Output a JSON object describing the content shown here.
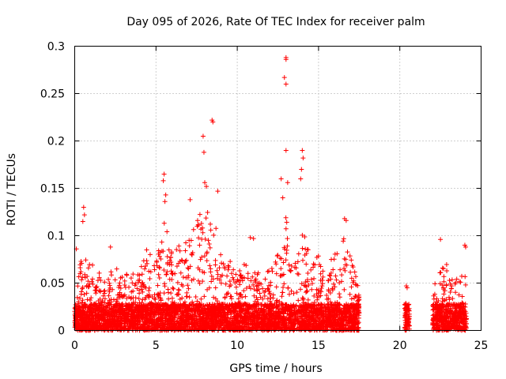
{
  "chart_data": {
    "type": "scatter",
    "title": "Day 095 of 2026, Rate Of TEC Index for receiver palm",
    "xlabel": "GPS time / hours",
    "ylabel": "ROTI / TECUs",
    "xlim": [
      0,
      25
    ],
    "ylim": [
      0,
      0.3
    ],
    "xticks": [
      0,
      5,
      10,
      15,
      20,
      25
    ],
    "yticks": [
      0,
      0.05,
      0.1,
      0.15,
      0.2,
      0.25,
      0.3
    ],
    "xtick_labels": [
      "0",
      "5",
      "10",
      "15",
      "20",
      "25"
    ],
    "ytick_labels": [
      "0",
      "0.05",
      "0.1",
      "0.15",
      "0.2",
      "0.25",
      "0.3"
    ],
    "grid": true,
    "marker": "+",
    "color": "#ff0000",
    "coverage_segments": [
      [
        0,
        17.5
      ],
      [
        20.3,
        20.6
      ],
      [
        22,
        24.1
      ]
    ],
    "outliers": [
      {
        "x": 13.0,
        "y": 0.288
      },
      {
        "x": 13.0,
        "y": 0.286
      },
      {
        "x": 12.9,
        "y": 0.267
      },
      {
        "x": 13.0,
        "y": 0.26
      },
      {
        "x": 8.5,
        "y": 0.22
      },
      {
        "x": 8.45,
        "y": 0.222
      },
      {
        "x": 7.9,
        "y": 0.205
      },
      {
        "x": 7.95,
        "y": 0.188
      },
      {
        "x": 13.0,
        "y": 0.19
      },
      {
        "x": 14.0,
        "y": 0.19
      },
      {
        "x": 14.05,
        "y": 0.182
      },
      {
        "x": 13.95,
        "y": 0.17
      },
      {
        "x": 13.9,
        "y": 0.16
      },
      {
        "x": 5.5,
        "y": 0.165
      },
      {
        "x": 5.45,
        "y": 0.158
      },
      {
        "x": 12.7,
        "y": 0.16
      },
      {
        "x": 13.1,
        "y": 0.156
      },
      {
        "x": 8.0,
        "y": 0.156
      },
      {
        "x": 8.1,
        "y": 0.152
      },
      {
        "x": 12.8,
        "y": 0.14
      },
      {
        "x": 5.6,
        "y": 0.143
      },
      {
        "x": 5.55,
        "y": 0.136
      },
      {
        "x": 0.55,
        "y": 0.13
      },
      {
        "x": 0.6,
        "y": 0.122
      },
      {
        "x": 0.5,
        "y": 0.115
      },
      {
        "x": 16.6,
        "y": 0.118
      },
      {
        "x": 16.7,
        "y": 0.116
      },
      {
        "x": 20.4,
        "y": 0.047
      },
      {
        "x": 20.45,
        "y": 0.045
      },
      {
        "x": 22.5,
        "y": 0.096
      },
      {
        "x": 24.0,
        "y": 0.09
      },
      {
        "x": 24.05,
        "y": 0.088
      },
      {
        "x": 7.1,
        "y": 0.138
      },
      {
        "x": 8.8,
        "y": 0.147
      },
      {
        "x": 10.8,
        "y": 0.098
      },
      {
        "x": 11.0,
        "y": 0.097
      },
      {
        "x": 2.2,
        "y": 0.088
      },
      {
        "x": 0.1,
        "y": 0.086
      }
    ],
    "envelope": [
      [
        0.0,
        0.03
      ],
      [
        0.5,
        0.09
      ],
      [
        1.0,
        0.07
      ],
      [
        1.5,
        0.065
      ],
      [
        2.0,
        0.06
      ],
      [
        2.5,
        0.07
      ],
      [
        3.0,
        0.06
      ],
      [
        3.5,
        0.06
      ],
      [
        4.0,
        0.065
      ],
      [
        4.5,
        0.09
      ],
      [
        5.0,
        0.07
      ],
      [
        5.5,
        0.12
      ],
      [
        6.0,
        0.085
      ],
      [
        6.5,
        0.09
      ],
      [
        7.0,
        0.1
      ],
      [
        7.5,
        0.12
      ],
      [
        8.0,
        0.145
      ],
      [
        8.5,
        0.12
      ],
      [
        9.0,
        0.09
      ],
      [
        9.5,
        0.075
      ],
      [
        10.0,
        0.07
      ],
      [
        10.5,
        0.07
      ],
      [
        11.0,
        0.065
      ],
      [
        11.5,
        0.06
      ],
      [
        12.0,
        0.07
      ],
      [
        12.5,
        0.08
      ],
      [
        13.0,
        0.12
      ],
      [
        13.5,
        0.09
      ],
      [
        14.0,
        0.11
      ],
      [
        14.5,
        0.08
      ],
      [
        15.0,
        0.08
      ],
      [
        15.5,
        0.075
      ],
      [
        16.0,
        0.08
      ],
      [
        16.5,
        0.1
      ],
      [
        17.0,
        0.08
      ],
      [
        17.5,
        0.045
      ],
      [
        20.3,
        0.03
      ],
      [
        20.6,
        0.03
      ],
      [
        22.0,
        0.05
      ],
      [
        22.5,
        0.07
      ],
      [
        23.0,
        0.07
      ],
      [
        23.5,
        0.06
      ],
      [
        24.0,
        0.06
      ],
      [
        24.1,
        0.04
      ]
    ]
  }
}
